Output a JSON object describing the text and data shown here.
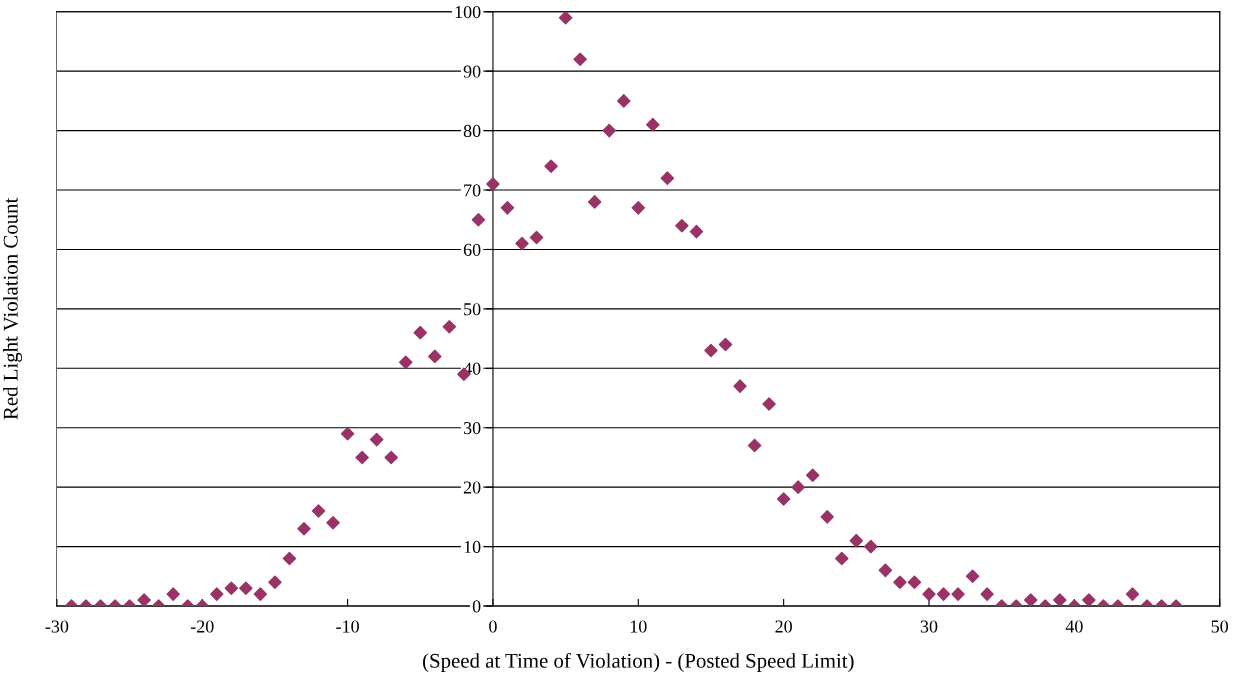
{
  "chart_data": {
    "type": "scatter",
    "xlabel": "(Speed at Time of Violation) - (Posted Speed Limit)",
    "ylabel": "Red Light Violation Count",
    "x": [
      -29,
      -28,
      -27,
      -26,
      -25,
      -24,
      -23,
      -22,
      -21,
      -20,
      -19,
      -18,
      -17,
      -16,
      -15,
      -14,
      -13,
      -12,
      -11,
      -10,
      -9,
      -8,
      -7,
      -6,
      -5,
      -4,
      -3,
      -2,
      -1,
      0,
      1,
      2,
      3,
      4,
      5,
      6,
      7,
      8,
      9,
      10,
      11,
      12,
      13,
      14,
      15,
      16,
      17,
      18,
      19,
      20,
      21,
      22,
      23,
      24,
      25,
      26,
      27,
      28,
      29,
      30,
      31,
      32,
      33,
      34,
      35,
      36,
      37,
      38,
      39,
      40,
      41,
      42,
      43,
      44,
      45,
      46,
      47
    ],
    "series": [
      {
        "color": "#993366",
        "values": [
          0,
          0,
          0,
          0,
          0,
          1,
          0,
          2,
          0,
          0,
          2,
          3,
          3,
          2,
          4,
          8,
          13,
          16,
          14,
          29,
          25,
          28,
          25,
          41,
          46,
          42,
          47,
          39,
          65,
          71,
          67,
          61,
          62,
          74,
          99,
          92,
          68,
          80,
          85,
          67,
          81,
          72,
          64,
          63,
          43,
          44,
          37,
          27,
          34,
          18,
          20,
          22,
          15,
          8,
          11,
          10,
          6,
          4,
          4,
          2,
          2,
          2,
          5,
          2,
          0,
          0,
          1,
          0,
          1,
          0,
          1,
          0,
          0,
          2,
          0,
          0,
          0
        ]
      }
    ],
    "xlim": [
      -30,
      50
    ],
    "ylim": [
      0,
      100
    ],
    "xticks": [
      -30,
      -20,
      -10,
      0,
      10,
      20,
      30,
      40,
      50
    ],
    "yticks": [
      0,
      10,
      20,
      30,
      40,
      50,
      60,
      70,
      80,
      90,
      100
    ],
    "grid": "y",
    "marker": "diamond",
    "legend": false
  }
}
